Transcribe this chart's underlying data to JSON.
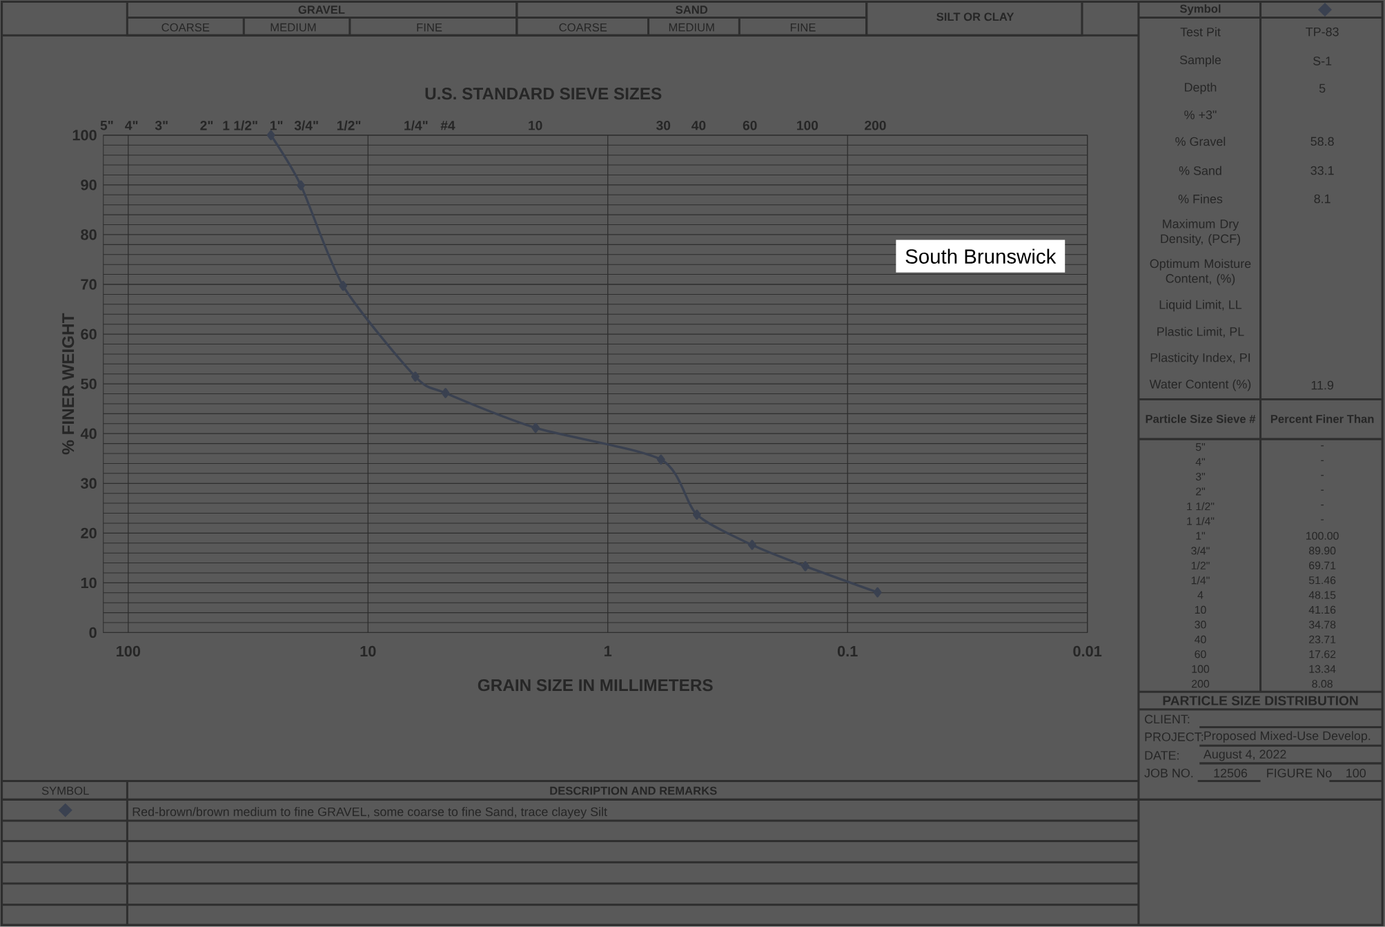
{
  "chart_data": {
    "type": "line",
    "xlabel": "GRAIN SIZE IN MILLIMETERS",
    "ylabel": "% FINER WEIGHT",
    "x2label": "U.S. STANDARD SIEVE SIZES",
    "x": [
      25.4,
      19.05,
      12.7,
      6.35,
      4.75,
      2.0,
      0.6,
      0.425,
      0.25,
      0.15,
      0.075
    ],
    "values": [
      100,
      89.9,
      69.71,
      51.46,
      48.15,
      41.16,
      34.78,
      23.71,
      17.62,
      13.34,
      8.08
    ],
    "color": "#3a4150",
    "marker": "diamond",
    "grid": true,
    "log": "x",
    "xlim": [
      127,
      0.01
    ],
    "xticks": [
      100,
      10,
      1,
      0.1,
      0.01
    ],
    "ylim": [
      0,
      100
    ],
    "yticks": [
      0,
      10,
      20,
      30,
      40,
      50,
      60,
      70,
      80,
      90,
      100
    ],
    "annotations": [
      "GRAVEL",
      "COARSE",
      "MEDIUM",
      "FINE",
      "SAND",
      "COARSE",
      "MEDIUM",
      "FINE",
      "SILT OR CLAY",
      "Symbol",
      "Test Pit",
      "TP-83",
      "Sample",
      "S-1",
      "Depth",
      "5",
      "% +3\"",
      "% Gravel",
      "58.8",
      "% Sand",
      "33.1",
      "% Fines",
      "8.1",
      "Maximum Dry Density, (PCF)",
      "Optimum Moisture Content, (%)",
      "Liquid Limit, LL",
      "Plastic Limit, PL",
      "Plasticity Index, PI",
      "Water Content (%)",
      "11.9",
      "Particle Size Sieve #",
      "Percent Finer Than",
      "5\"",
      "-",
      "4\"",
      "-",
      "3\"",
      "-",
      "2\"",
      "-",
      "1 1/2\"",
      "-",
      "1 1/4\"",
      "-",
      "1\"",
      "100.00",
      "3/4\"",
      "89.90",
      "1/2\"",
      "69.71",
      "1/4\"",
      "51.46",
      "4",
      "48.15",
      "10",
      "41.16",
      "30",
      "34.78",
      "40",
      "23.71",
      "60",
      "17.62",
      "100",
      "13.34",
      "200",
      "8.08",
      "PARTICLE SIZE DISTRIBUTION",
      "CLIENT:",
      "PROJECT:",
      "Proposed Mixed-Use Develop.",
      "DATE:",
      "August 4, 2022",
      "JOB NO.",
      "12506",
      "FIGURE No",
      "100",
      "SYMBOL",
      "DESCRIPTION AND REMARKS",
      "Red-brown/brown medium to fine GRAVEL, some coarse to fine Sand, trace clayey Silt",
      "South Brunswick",
      "5\"",
      "4\"",
      "3\"",
      "2\"",
      "1 1/2\"",
      "1\"",
      "3/4\"",
      "1/2\"",
      "1/4\"",
      "#4",
      "10",
      "30",
      "40",
      "60",
      "100",
      "200"
    ]
  }
}
